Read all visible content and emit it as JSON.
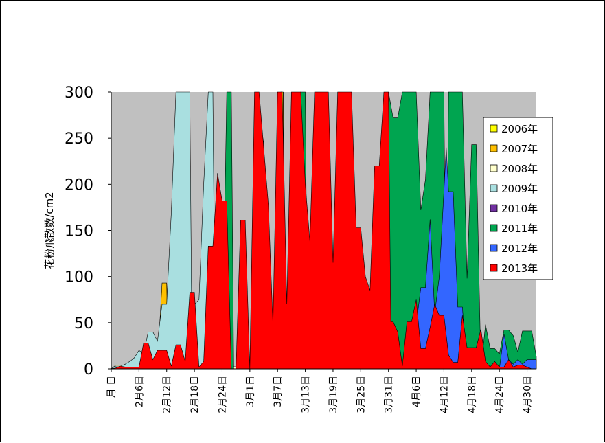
{
  "chart_data": {
    "type": "area",
    "title": "",
    "ylabel": "花粉飛散数/cm2",
    "xlabel": "",
    "ylim": [
      0,
      300
    ],
    "yticks": [
      0,
      50,
      100,
      150,
      200,
      250,
      300
    ],
    "x_range": [
      0,
      92
    ],
    "grid": false,
    "plot_background": "#c0c0c0",
    "legend_position": "right",
    "xticks": [
      {
        "label": "月 日",
        "x": 0
      },
      {
        "label": "2月6日",
        "x": 6
      },
      {
        "label": "2月12日",
        "x": 12
      },
      {
        "label": "2月18日",
        "x": 18
      },
      {
        "label": "2月24日",
        "x": 24
      },
      {
        "label": "3月1日",
        "x": 30
      },
      {
        "label": "3月7日",
        "x": 36
      },
      {
        "label": "3月13日",
        "x": 42
      },
      {
        "label": "3月19日",
        "x": 48
      },
      {
        "label": "3月25日",
        "x": 54
      },
      {
        "label": "3月31日",
        "x": 60
      },
      {
        "label": "4月6日",
        "x": 66
      },
      {
        "label": "4月12日",
        "x": 72
      },
      {
        "label": "4月18日",
        "x": 78
      },
      {
        "label": "4月24日",
        "x": 84
      },
      {
        "label": "4月30日",
        "x": 90
      }
    ],
    "series": [
      {
        "name": "2006年",
        "color": "#ffff00",
        "points": [
          [
            0,
            0
          ],
          [
            37,
            0
          ],
          [
            37.3,
            300
          ],
          [
            37.6,
            0
          ],
          [
            92,
            0
          ]
        ]
      },
      {
        "name": "2007年",
        "color": "#ffc000",
        "points": [
          [
            0,
            0
          ],
          [
            1,
            3
          ],
          [
            10,
            5
          ],
          [
            11,
            93
          ],
          [
            12,
            93
          ],
          [
            12.3,
            0
          ],
          [
            36,
            0
          ],
          [
            36.7,
            300
          ],
          [
            37.2,
            300
          ],
          [
            37.6,
            0
          ],
          [
            92,
            0
          ]
        ]
      },
      {
        "name": "2008年",
        "color": "#ffffcc",
        "points": [
          [
            0,
            0
          ],
          [
            1,
            4
          ],
          [
            2,
            4
          ],
          [
            3,
            4
          ],
          [
            4,
            5
          ],
          [
            5,
            3
          ],
          [
            6,
            3
          ],
          [
            92,
            0
          ]
        ]
      },
      {
        "name": "2009年",
        "color": "#a9dfe0",
        "points": [
          [
            0,
            0
          ],
          [
            1,
            3
          ],
          [
            2,
            3
          ],
          [
            3,
            5
          ],
          [
            4,
            8
          ],
          [
            5,
            12
          ],
          [
            6,
            20
          ],
          [
            7,
            16
          ],
          [
            8,
            40
          ],
          [
            9,
            40
          ],
          [
            10,
            30
          ],
          [
            11,
            70
          ],
          [
            12,
            70
          ],
          [
            13,
            170
          ],
          [
            14,
            300
          ],
          [
            17,
            300
          ],
          [
            17.5,
            6
          ],
          [
            18,
            70
          ],
          [
            19,
            75
          ],
          [
            20,
            200
          ],
          [
            21,
            300
          ],
          [
            22,
            300
          ],
          [
            22.5,
            0
          ],
          [
            92,
            0
          ]
        ]
      },
      {
        "name": "2010年",
        "color": "#7030a0",
        "points": [
          [
            0,
            0
          ],
          [
            92,
            0
          ]
        ]
      },
      {
        "name": "2011年",
        "color": "#00a550",
        "points": [
          [
            0,
            0
          ],
          [
            24,
            0
          ],
          [
            25,
            300
          ],
          [
            26,
            300
          ],
          [
            26.5,
            0
          ],
          [
            30,
            0
          ],
          [
            32,
            275
          ],
          [
            33,
            245
          ],
          [
            34,
            0
          ],
          [
            38,
            0
          ],
          [
            41,
            300
          ],
          [
            42,
            300
          ],
          [
            42.5,
            0
          ],
          [
            59,
            0
          ],
          [
            60,
            300
          ],
          [
            61,
            272
          ],
          [
            62,
            272
          ],
          [
            63,
            300
          ],
          [
            66,
            300
          ],
          [
            67,
            172
          ],
          [
            68,
            205
          ],
          [
            69,
            300
          ],
          [
            72,
            300
          ],
          [
            72.5,
            0
          ],
          [
            73,
            300
          ],
          [
            76,
            300
          ],
          [
            77,
            98
          ],
          [
            78,
            243
          ],
          [
            79,
            243
          ],
          [
            80,
            0
          ],
          [
            81,
            48
          ],
          [
            82,
            22
          ],
          [
            83,
            22
          ],
          [
            84,
            16
          ],
          [
            85,
            42
          ],
          [
            86,
            42
          ],
          [
            87,
            36
          ],
          [
            88,
            18
          ],
          [
            89,
            41
          ],
          [
            90,
            41
          ],
          [
            91,
            41
          ],
          [
            92,
            13
          ]
        ]
      },
      {
        "name": "2012年",
        "color": "#3366ff",
        "points": [
          [
            0,
            0
          ],
          [
            64,
            0
          ],
          [
            66,
            48
          ],
          [
            67,
            88
          ],
          [
            68,
            88
          ],
          [
            69,
            162
          ],
          [
            70,
            60
          ],
          [
            71,
            100
          ],
          [
            72,
            192
          ],
          [
            72.5,
            240
          ],
          [
            73,
            192
          ],
          [
            74,
            192
          ],
          [
            75,
            67
          ],
          [
            76,
            67
          ],
          [
            77,
            0
          ],
          [
            84,
            0
          ],
          [
            85,
            38
          ],
          [
            86,
            10
          ],
          [
            87,
            5
          ],
          [
            88,
            10
          ],
          [
            89,
            5
          ],
          [
            90,
            10
          ],
          [
            91,
            10
          ],
          [
            92,
            10
          ]
        ]
      },
      {
        "name": "2013年",
        "color": "#ff0000",
        "points": [
          [
            0,
            0
          ],
          [
            1,
            1
          ],
          [
            2,
            3
          ],
          [
            3,
            2
          ],
          [
            4,
            2
          ],
          [
            5,
            2
          ],
          [
            6,
            2
          ],
          [
            7,
            28
          ],
          [
            8,
            28
          ],
          [
            9,
            10
          ],
          [
            10,
            20
          ],
          [
            11,
            20
          ],
          [
            12,
            20
          ],
          [
            13,
            3
          ],
          [
            14,
            26
          ],
          [
            15,
            26
          ],
          [
            16,
            8
          ],
          [
            17,
            83
          ],
          [
            18,
            83
          ],
          [
            19,
            2
          ],
          [
            20,
            8
          ],
          [
            21,
            133
          ],
          [
            22,
            133
          ],
          [
            23,
            212
          ],
          [
            24,
            182
          ],
          [
            25,
            182
          ],
          [
            26,
            0
          ],
          [
            27,
            0
          ],
          [
            28,
            161
          ],
          [
            29,
            161
          ],
          [
            30,
            0
          ],
          [
            31,
            300
          ],
          [
            32,
            300
          ],
          [
            33,
            240
          ],
          [
            34,
            178
          ],
          [
            35,
            48
          ],
          [
            36,
            300
          ],
          [
            37,
            300
          ],
          [
            38,
            70
          ],
          [
            39,
            300
          ],
          [
            41,
            300
          ],
          [
            42,
            200
          ],
          [
            43,
            138
          ],
          [
            44,
            300
          ],
          [
            46,
            300
          ],
          [
            47,
            300
          ],
          [
            48,
            115
          ],
          [
            49,
            300
          ],
          [
            52,
            300
          ],
          [
            53,
            153
          ],
          [
            54,
            153
          ],
          [
            55,
            100
          ],
          [
            56,
            85
          ],
          [
            57,
            220
          ],
          [
            58,
            220
          ],
          [
            59,
            300
          ],
          [
            60,
            300
          ],
          [
            60.5,
            51
          ],
          [
            61,
            51
          ],
          [
            62,
            40
          ],
          [
            63,
            3
          ],
          [
            64,
            51
          ],
          [
            65,
            51
          ],
          [
            66,
            75
          ],
          [
            67,
            22
          ],
          [
            68,
            22
          ],
          [
            69,
            45
          ],
          [
            70,
            70
          ],
          [
            71,
            58
          ],
          [
            72,
            58
          ],
          [
            73,
            15
          ],
          [
            74,
            7
          ],
          [
            75,
            7
          ],
          [
            76,
            58
          ],
          [
            77,
            23
          ],
          [
            78,
            23
          ],
          [
            79,
            23
          ],
          [
            80,
            43
          ],
          [
            81,
            8
          ],
          [
            82,
            2
          ],
          [
            83,
            8
          ],
          [
            84,
            2
          ],
          [
            85,
            2
          ],
          [
            86,
            10
          ],
          [
            87,
            2
          ],
          [
            88,
            4
          ],
          [
            89,
            4
          ],
          [
            90,
            2
          ],
          [
            91,
            0
          ],
          [
            92,
            0
          ]
        ]
      }
    ]
  }
}
